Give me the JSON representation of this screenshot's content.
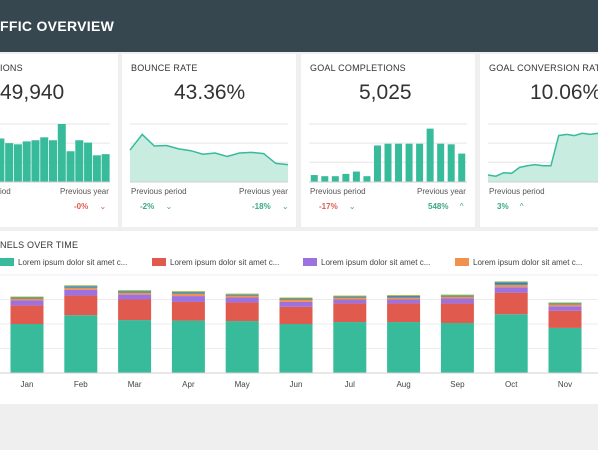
{
  "header": {
    "title": "FFIC OVERVIEW"
  },
  "cards": [
    {
      "label": "IONS",
      "value": "49,940",
      "prev_period": "iod",
      "prev_year": "Previous year",
      "delta_period": "",
      "delta_year": "-0%",
      "year_trend": "down",
      "year_color": "#e05a4e"
    },
    {
      "label": "BOUNCE RATE",
      "value": "43.36%",
      "prev_period": "Previous period",
      "prev_year": "Previous year",
      "delta_period": "-2%",
      "delta_year": "-18%",
      "period_trend": "down",
      "year_trend": "down",
      "period_color": "#3aa983",
      "year_color": "#3aa983"
    },
    {
      "label": "GOAL COMPLETIONS",
      "value": "5,025",
      "prev_period": "Previous period",
      "prev_year": "Previous year",
      "delta_period": "-17%",
      "delta_year": "548%",
      "period_trend": "down",
      "year_trend": "up",
      "period_color": "#e05a4e",
      "year_color": "#3aa983"
    },
    {
      "label": "GOAL CONVERSION RATE",
      "value": "10.06%",
      "prev_period": "Previous period",
      "prev_year": "",
      "delta_period": "3%",
      "delta_year": "",
      "period_trend": "up",
      "period_color": "#3aa983"
    }
  ],
  "bottom": {
    "title": "NELS OVER TIME",
    "legend": [
      {
        "label": "Lorem ipsum dolor sit amet c...",
        "color": "#37bb9b"
      },
      {
        "label": "Lorem ipsum dolor sit amet c...",
        "color": "#e05a4e"
      },
      {
        "label": "Lorem ipsum dolor sit amet c...",
        "color": "#9b72e0"
      },
      {
        "label": "Lorem ipsum dolor sit amet c...",
        "color": "#f0924d"
      }
    ]
  },
  "chart_data": [
    {
      "type": "bar",
      "values": [
        75,
        67,
        65,
        70,
        72,
        77,
        72,
        100,
        53,
        72,
        68,
        46,
        48
      ]
    },
    {
      "type": "area",
      "values": [
        55,
        82,
        62,
        63,
        57,
        54,
        48,
        50,
        44,
        50,
        51,
        49,
        32,
        30
      ]
    },
    {
      "type": "bar",
      "values": [
        12,
        10,
        10,
        14,
        18,
        10,
        63,
        66,
        66,
        66,
        66,
        92,
        66,
        65,
        49
      ]
    },
    {
      "type": "area",
      "values": [
        12,
        10,
        16,
        15,
        25,
        28,
        30,
        28,
        28,
        80,
        82,
        80,
        84,
        82,
        84
      ]
    },
    {
      "type": "bar",
      "stacked": true,
      "categories": [
        "Jan",
        "Feb",
        "Mar",
        "Apr",
        "May",
        "Jun",
        "Jul",
        "Aug",
        "Sep",
        "Oct",
        "Nov"
      ],
      "series": [
        {
          "color": "#37bb9b",
          "values": [
            100,
            118,
            108,
            107,
            106,
            100,
            104,
            104,
            102,
            120,
            92
          ]
        },
        {
          "color": "#e05a4e",
          "values": [
            38,
            40,
            42,
            38,
            38,
            35,
            38,
            38,
            40,
            44,
            35
          ]
        },
        {
          "color": "#9b72e0",
          "values": [
            10,
            12,
            10,
            12,
            10,
            10,
            8,
            8,
            10,
            11,
            9
          ]
        },
        {
          "color": "#f0924d",
          "values": [
            4,
            4,
            4,
            5,
            4,
            5,
            4,
            4,
            4,
            5,
            4
          ]
        },
        {
          "color": "#2f7fc1",
          "values": [
            2,
            3,
            3,
            3,
            2,
            2,
            2,
            3,
            2,
            5,
            2
          ]
        },
        {
          "color": "#9dbf3b",
          "values": [
            2,
            2,
            2,
            2,
            2,
            2,
            2,
            2,
            2,
            2,
            2
          ]
        }
      ],
      "ylim": [
        0,
        200
      ]
    }
  ]
}
